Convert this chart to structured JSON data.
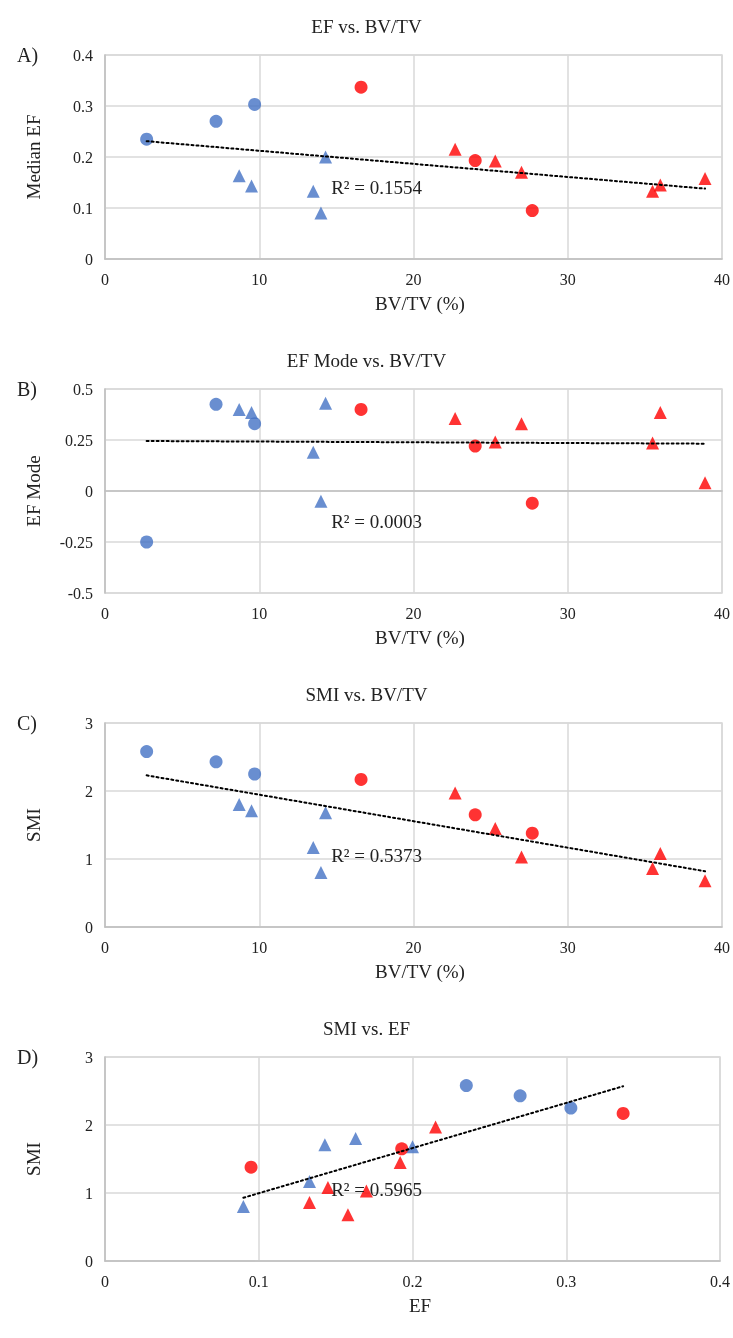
{
  "chart_data": [
    {
      "type": "scatter",
      "title": "EF vs. BV/TV",
      "xlabel": "BV/TV (%)",
      "ylabel": "Median EF",
      "xlim": [
        0,
        40
      ],
      "xticks": [
        0,
        10,
        20,
        30,
        40
      ],
      "ylim": [
        0,
        0.4
      ],
      "yticks": [
        0,
        0.1,
        0.2,
        0.3,
        0.4
      ],
      "grid": true,
      "annotations": [
        "A)",
        "R² = 0.1554"
      ],
      "series": [
        {
          "color": "#4472c4",
          "marker": "circle",
          "x": [
            2.7,
            7.2,
            9.7
          ],
          "values": [
            0.235,
            0.27,
            0.303
          ]
        },
        {
          "color": "#4472c4",
          "marker": "triangle",
          "x": [
            8.7,
            9.5,
            13.5,
            14.0,
            14.3
          ],
          "values": [
            0.163,
            0.143,
            0.133,
            0.09,
            0.2
          ]
        },
        {
          "color": "#ff0000",
          "marker": "circle",
          "x": [
            16.6,
            24.0,
            27.7
          ],
          "values": [
            0.337,
            0.193,
            0.095
          ]
        },
        {
          "color": "#ff0000",
          "marker": "triangle",
          "x": [
            22.7,
            25.3,
            27.0,
            35.5,
            36.0,
            38.9
          ],
          "values": [
            0.215,
            0.192,
            0.17,
            0.133,
            0.145,
            0.158
          ]
        },
        {
          "type": "line",
          "color": "#000000",
          "marker": "none",
          "line_style": "dotted",
          "x": [
            2.7,
            38.9
          ],
          "values": [
            0.231,
            0.138
          ]
        }
      ]
    },
    {
      "type": "scatter",
      "title": "EF Mode vs. BV/TV",
      "xlabel": "BV/TV (%)",
      "ylabel": "EF Mode",
      "xlim": [
        0,
        40
      ],
      "xticks": [
        0,
        10,
        20,
        30,
        40
      ],
      "ylim": [
        -0.5,
        0.5
      ],
      "yticks": [
        -0.5,
        -0.25,
        0,
        0.25,
        0.5
      ],
      "grid": true,
      "annotations": [
        "B)",
        "R² = 0.0003"
      ],
      "series": [
        {
          "color": "#4472c4",
          "marker": "circle",
          "x": [
            2.7,
            7.2,
            9.7
          ],
          "values": [
            -0.25,
            0.425,
            0.33
          ]
        },
        {
          "color": "#4472c4",
          "marker": "triangle",
          "x": [
            8.7,
            9.5,
            13.5,
            14.0,
            14.3
          ],
          "values": [
            0.4,
            0.385,
            0.19,
            -0.05,
            0.43
          ]
        },
        {
          "color": "#ff0000",
          "marker": "circle",
          "x": [
            16.6,
            24.0,
            27.7
          ],
          "values": [
            0.4,
            0.22,
            -0.06
          ]
        },
        {
          "color": "#ff0000",
          "marker": "triangle",
          "x": [
            22.7,
            25.3,
            27.0,
            35.5,
            36.0,
            38.9
          ],
          "values": [
            0.355,
            0.24,
            0.33,
            0.235,
            0.385,
            0.04
          ]
        },
        {
          "type": "line",
          "color": "#000000",
          "marker": "none",
          "line_style": "dotted",
          "x": [
            2.7,
            38.9
          ],
          "values": [
            0.245,
            0.232
          ]
        }
      ]
    },
    {
      "type": "scatter",
      "title": "SMI vs. BV/TV",
      "xlabel": "BV/TV (%)",
      "ylabel": "SMI",
      "xlim": [
        0,
        40
      ],
      "xticks": [
        0,
        10,
        20,
        30,
        40
      ],
      "ylim": [
        0,
        3
      ],
      "yticks": [
        0,
        1,
        2,
        3
      ],
      "grid": true,
      "annotations": [
        "C)",
        "R² = 0.5373"
      ],
      "series": [
        {
          "color": "#4472c4",
          "marker": "circle",
          "x": [
            2.7,
            7.2,
            9.7
          ],
          "values": [
            2.58,
            2.43,
            2.25
          ]
        },
        {
          "color": "#4472c4",
          "marker": "triangle",
          "x": [
            8.7,
            9.5,
            13.5,
            14.0,
            14.3
          ],
          "values": [
            1.8,
            1.71,
            1.17,
            0.8,
            1.68
          ]
        },
        {
          "color": "#ff0000",
          "marker": "circle",
          "x": [
            16.6,
            24.0,
            27.7
          ],
          "values": [
            2.17,
            1.65,
            1.38
          ]
        },
        {
          "color": "#ff0000",
          "marker": "triangle",
          "x": [
            22.7,
            25.3,
            27.0,
            35.5,
            36.0,
            38.9
          ],
          "values": [
            1.97,
            1.45,
            1.03,
            0.86,
            1.08,
            0.68
          ]
        },
        {
          "type": "line",
          "color": "#000000",
          "marker": "none",
          "line_style": "dotted",
          "x": [
            2.7,
            38.9
          ],
          "values": [
            2.23,
            0.82
          ]
        }
      ]
    },
    {
      "type": "scatter",
      "title": "SMI vs. EF",
      "xlabel": "EF",
      "ylabel": "SMI",
      "xlim": [
        0,
        0.4
      ],
      "xticks": [
        0,
        0.1,
        0.2,
        0.3,
        0.4
      ],
      "ylim": [
        0,
        3
      ],
      "yticks": [
        0,
        1,
        2,
        3
      ],
      "grid": true,
      "annotations": [
        "D)",
        "R² = 0.5965"
      ],
      "series": [
        {
          "color": "#4472c4",
          "marker": "circle",
          "x": [
            0.235,
            0.27,
            0.303
          ],
          "values": [
            2.58,
            2.43,
            2.25
          ]
        },
        {
          "color": "#4472c4",
          "marker": "triangle",
          "x": [
            0.163,
            0.143,
            0.133,
            0.09,
            0.2
          ],
          "values": [
            1.8,
            1.71,
            1.17,
            0.8,
            1.68
          ]
        },
        {
          "color": "#ff0000",
          "marker": "circle",
          "x": [
            0.337,
            0.193,
            0.095
          ],
          "values": [
            2.17,
            1.65,
            1.38
          ]
        },
        {
          "color": "#ff0000",
          "marker": "triangle",
          "x": [
            0.215,
            0.192,
            0.17,
            0.133,
            0.145,
            0.158
          ],
          "values": [
            1.97,
            1.45,
            1.03,
            0.86,
            1.08,
            0.68
          ]
        },
        {
          "type": "line",
          "color": "#000000",
          "marker": "none",
          "line_style": "dotted",
          "x": [
            0.09,
            0.337
          ],
          "values": [
            0.93,
            2.57
          ]
        }
      ]
    }
  ]
}
